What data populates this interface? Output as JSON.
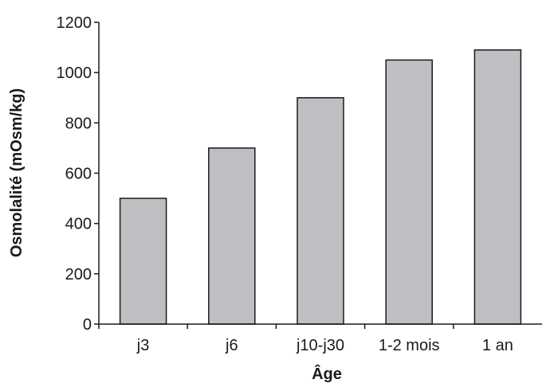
{
  "chart_data": {
    "type": "bar",
    "categories": [
      "j3",
      "j6",
      "j10-j30",
      "1-2 mois",
      "1 an"
    ],
    "values": [
      500,
      700,
      900,
      1050,
      1090
    ],
    "xlabel": "Âge",
    "ylabel": "Osmolalité (mOsm/kg)",
    "ylim": [
      0,
      1200
    ],
    "yticks": [
      0,
      200,
      400,
      600,
      800,
      1000,
      1200
    ],
    "grid": false,
    "legend": "none",
    "bar_color": "#bfbfc3",
    "edge_color": "#1a1a1a"
  }
}
